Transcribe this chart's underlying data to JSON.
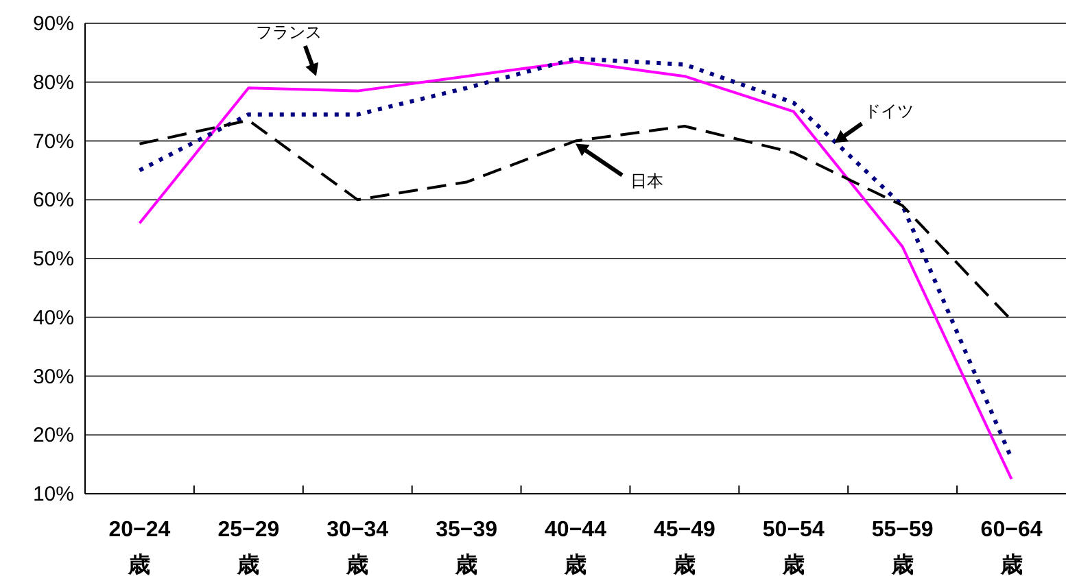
{
  "chart_data": {
    "type": "line",
    "categories": [
      "20−24\n歳",
      "25−29\n歳",
      "30−34\n歳",
      "35−39\n歳",
      "40−44\n歳",
      "45−49\n歳",
      "50−54\n歳",
      "55−59\n歳",
      "60−64\n歳"
    ],
    "series": [
      {
        "name": "フランス",
        "color": "#ff00ff",
        "line_style": "solid",
        "values": [
          56,
          79,
          78.5,
          81,
          83.5,
          81,
          75,
          52,
          12.5
        ]
      },
      {
        "name": "ドイツ",
        "color": "#000080",
        "line_style": "dotted",
        "values": [
          65,
          74.5,
          74.5,
          79,
          84,
          83,
          76.5,
          59,
          16
        ]
      },
      {
        "name": "日本",
        "color": "#000000",
        "line_style": "dashed",
        "values": [
          69.5,
          73.5,
          60,
          63,
          70,
          72.5,
          68,
          59,
          39.5
        ]
      }
    ],
    "ylim": [
      10,
      90
    ],
    "yticks": [
      {
        "value": 10,
        "label": "10%"
      },
      {
        "value": 20,
        "label": "20%"
      },
      {
        "value": 30,
        "label": "30%"
      },
      {
        "value": 40,
        "label": "40%"
      },
      {
        "value": 50,
        "label": "50%"
      },
      {
        "value": 60,
        "label": "60%"
      },
      {
        "value": 70,
        "label": "70%"
      },
      {
        "value": 80,
        "label": "80%"
      },
      {
        "value": 90,
        "label": "90%"
      }
    ],
    "grid": "y",
    "marker": "none"
  }
}
